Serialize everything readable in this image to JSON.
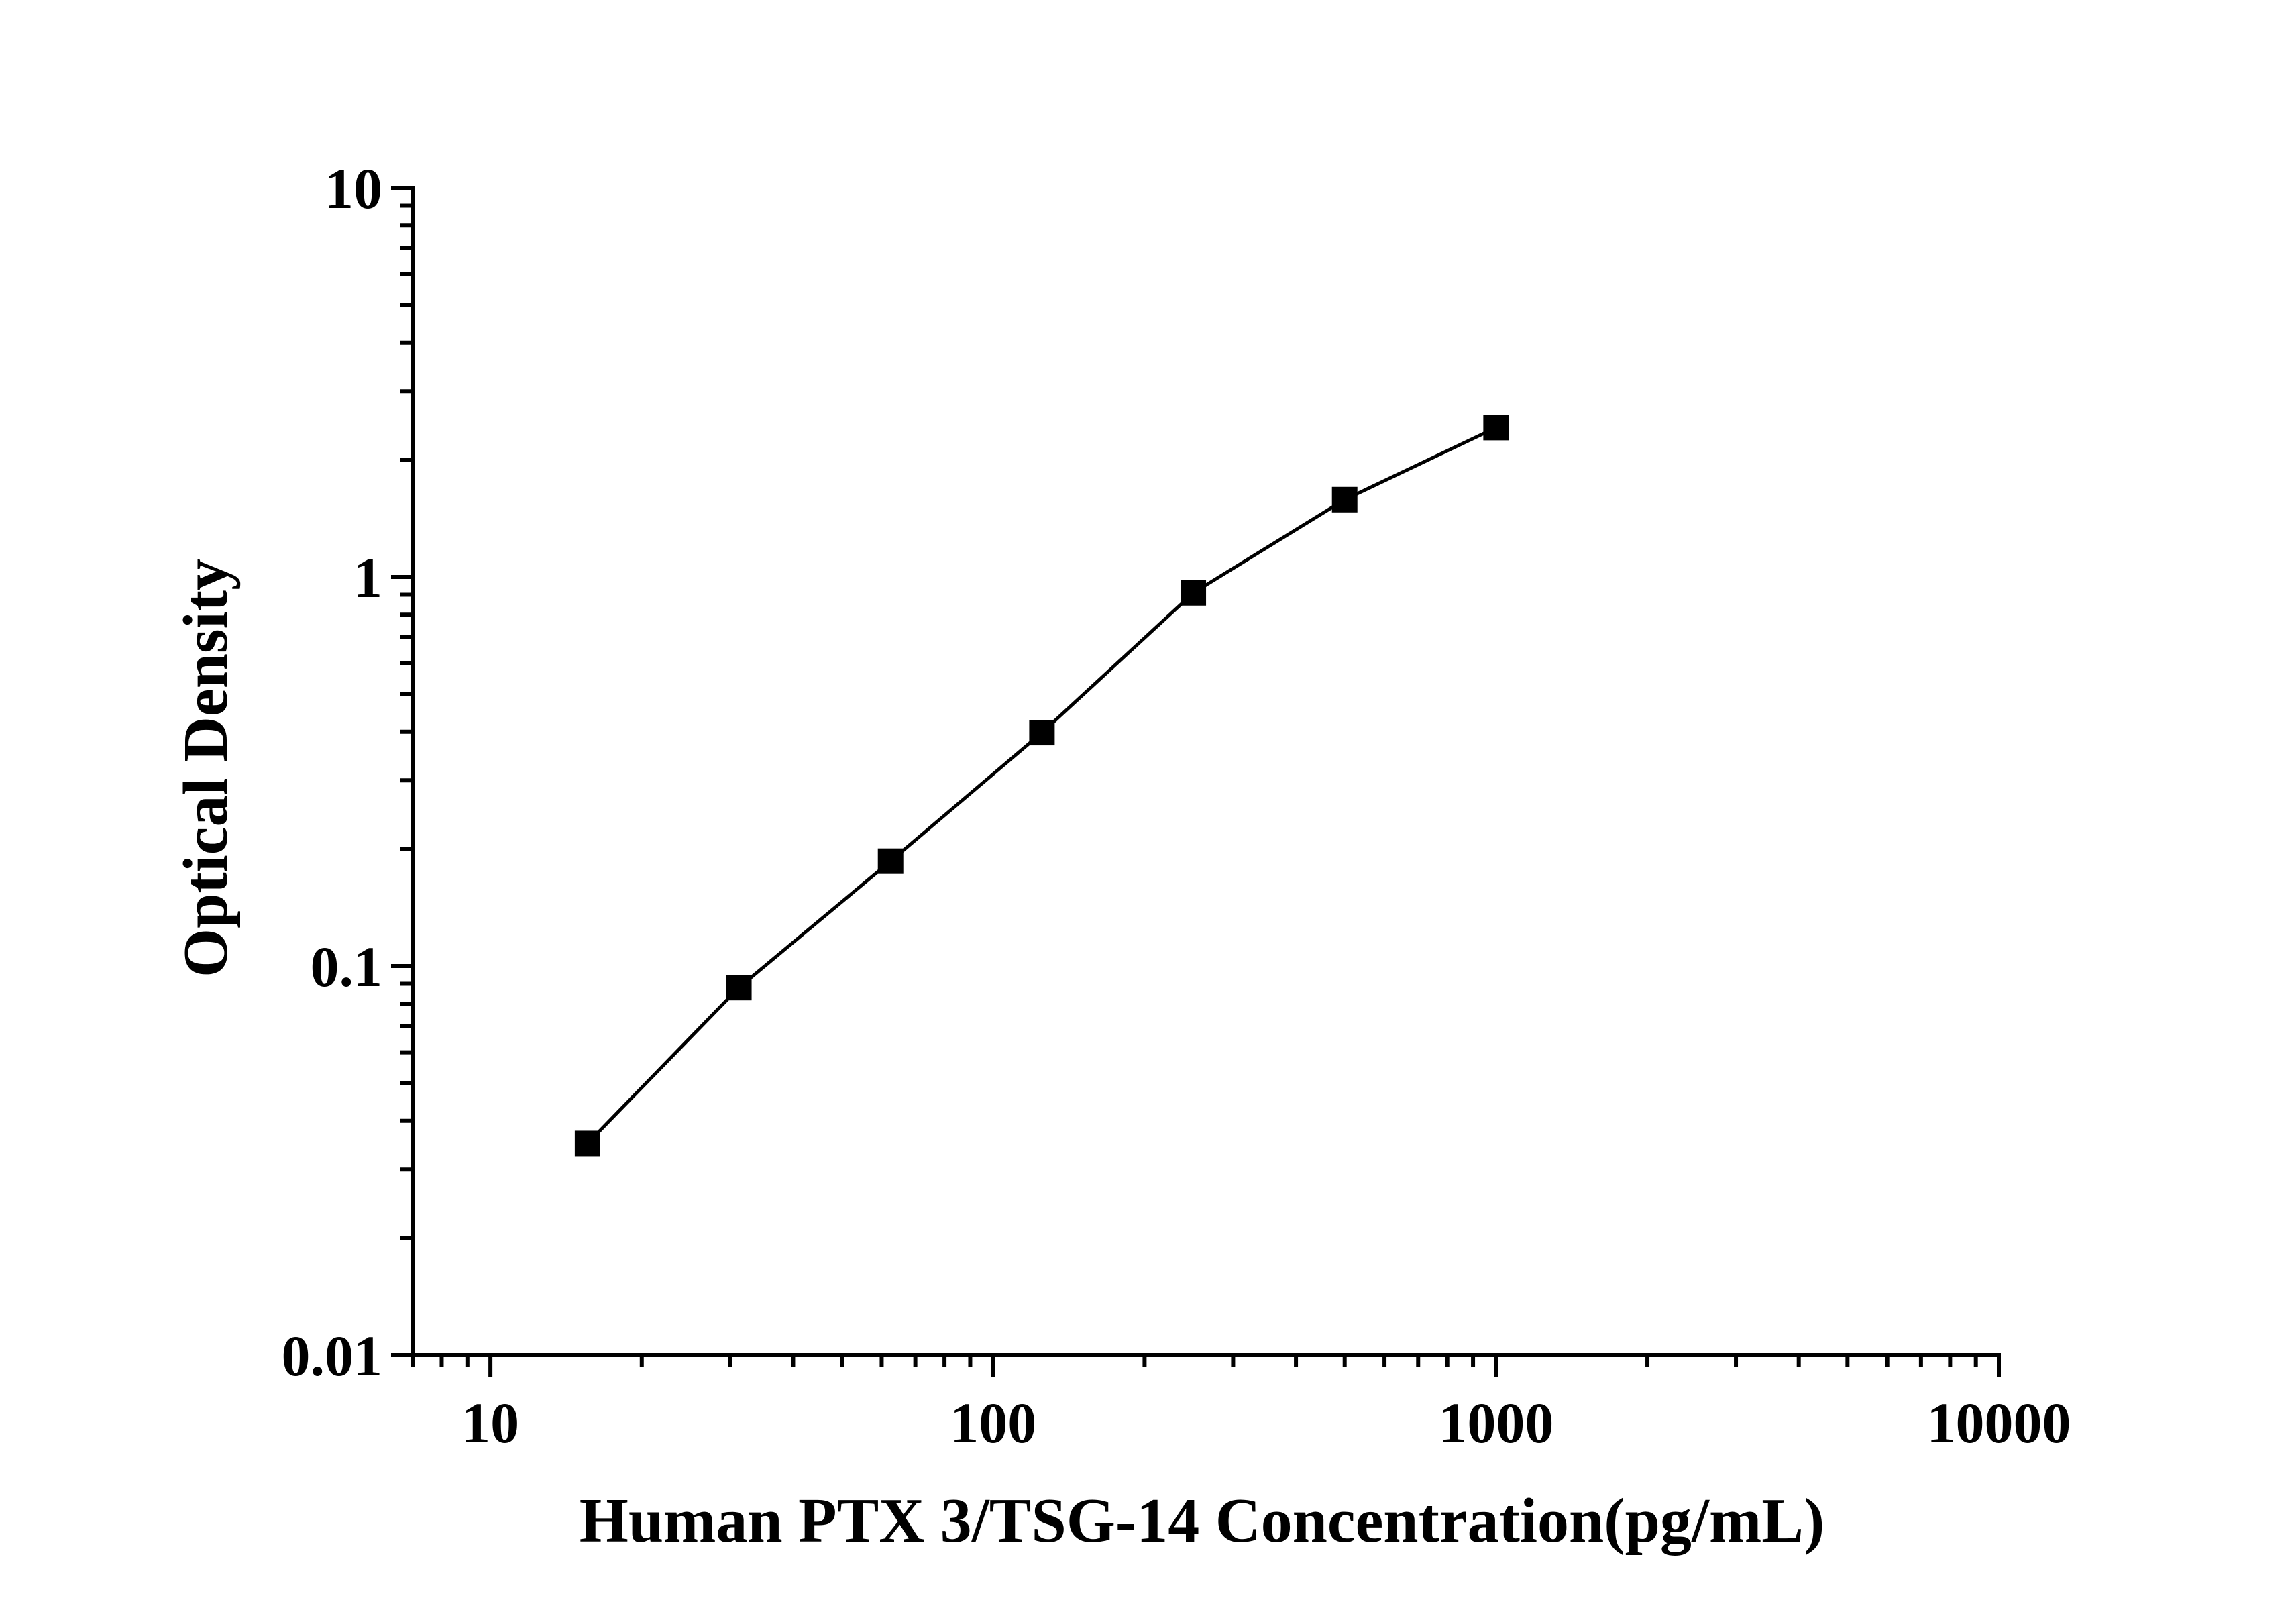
{
  "chart_data": {
    "type": "line",
    "title": "",
    "xlabel": "Human PTX 3/TSG-14 Concentration(pg/mL)",
    "ylabel": "Optical Density",
    "x_scale": "log",
    "y_scale": "log",
    "xlim": [
      7,
      10000
    ],
    "ylim": [
      0.01,
      10
    ],
    "x_ticks": [
      "10",
      "100",
      "1000",
      "10000"
    ],
    "y_ticks": [
      "0.01",
      "0.1",
      "1",
      "10"
    ],
    "grid": false,
    "legend": "none",
    "marker": "square",
    "color": "#000000",
    "series": [
      {
        "x": [
          15.6,
          31.2,
          62.5,
          125,
          250,
          500,
          1000
        ],
        "y": [
          0.035,
          0.088,
          0.186,
          0.398,
          0.91,
          1.58,
          2.42
        ]
      }
    ]
  }
}
